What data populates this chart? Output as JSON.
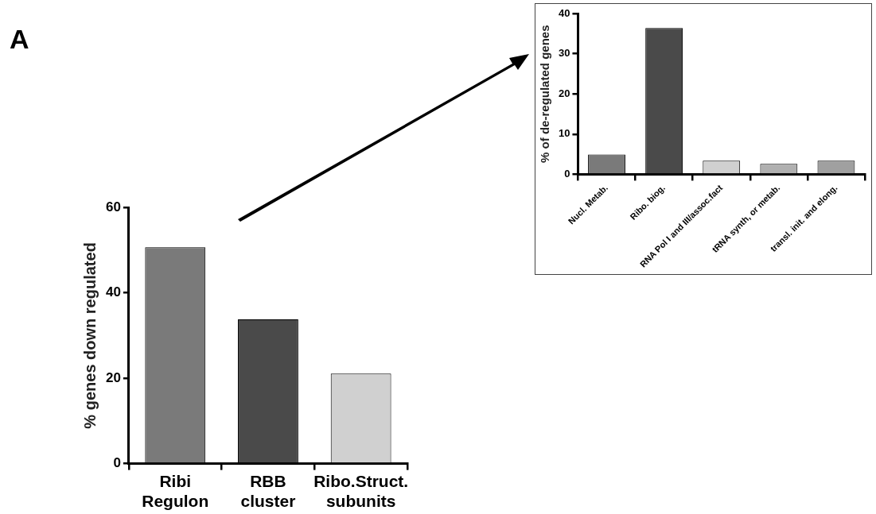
{
  "chart_data": [
    {
      "type": "bar",
      "annotations": [
        "A"
      ],
      "ylabel": "% genes down regulated",
      "categories": [
        "Ribi Regulon",
        "RBB cluster",
        "Ribo.Struct. subunits"
      ],
      "values": [
        50.7,
        33.8,
        21.1
      ],
      "colors": [
        "#7a7a7a",
        "#4a4a4a",
        "#d0d0d0"
      ],
      "ylim": [
        0,
        60
      ],
      "yticks": [
        0,
        20,
        40,
        60
      ],
      "grid": false,
      "legend": false
    },
    {
      "type": "bar",
      "ylabel": "% of de-regulated genes",
      "categories": [
        "Nucl. Metab.",
        "Ribo. biog.",
        "RNA Pol I and III/assoc.fact",
        "tRNA synth, or metab.",
        "transl. init. and elong."
      ],
      "values": [
        4.9,
        36.4,
        3.4,
        2.6,
        3.4
      ],
      "colors": [
        "#7a7a7a",
        "#4a4a4a",
        "#d0d0d0",
        "#b0b0b0",
        "#a0a0a0"
      ],
      "ylim": [
        0,
        40
      ],
      "yticks": [
        0,
        10,
        20,
        30,
        40
      ],
      "grid": false,
      "legend": false
    }
  ]
}
